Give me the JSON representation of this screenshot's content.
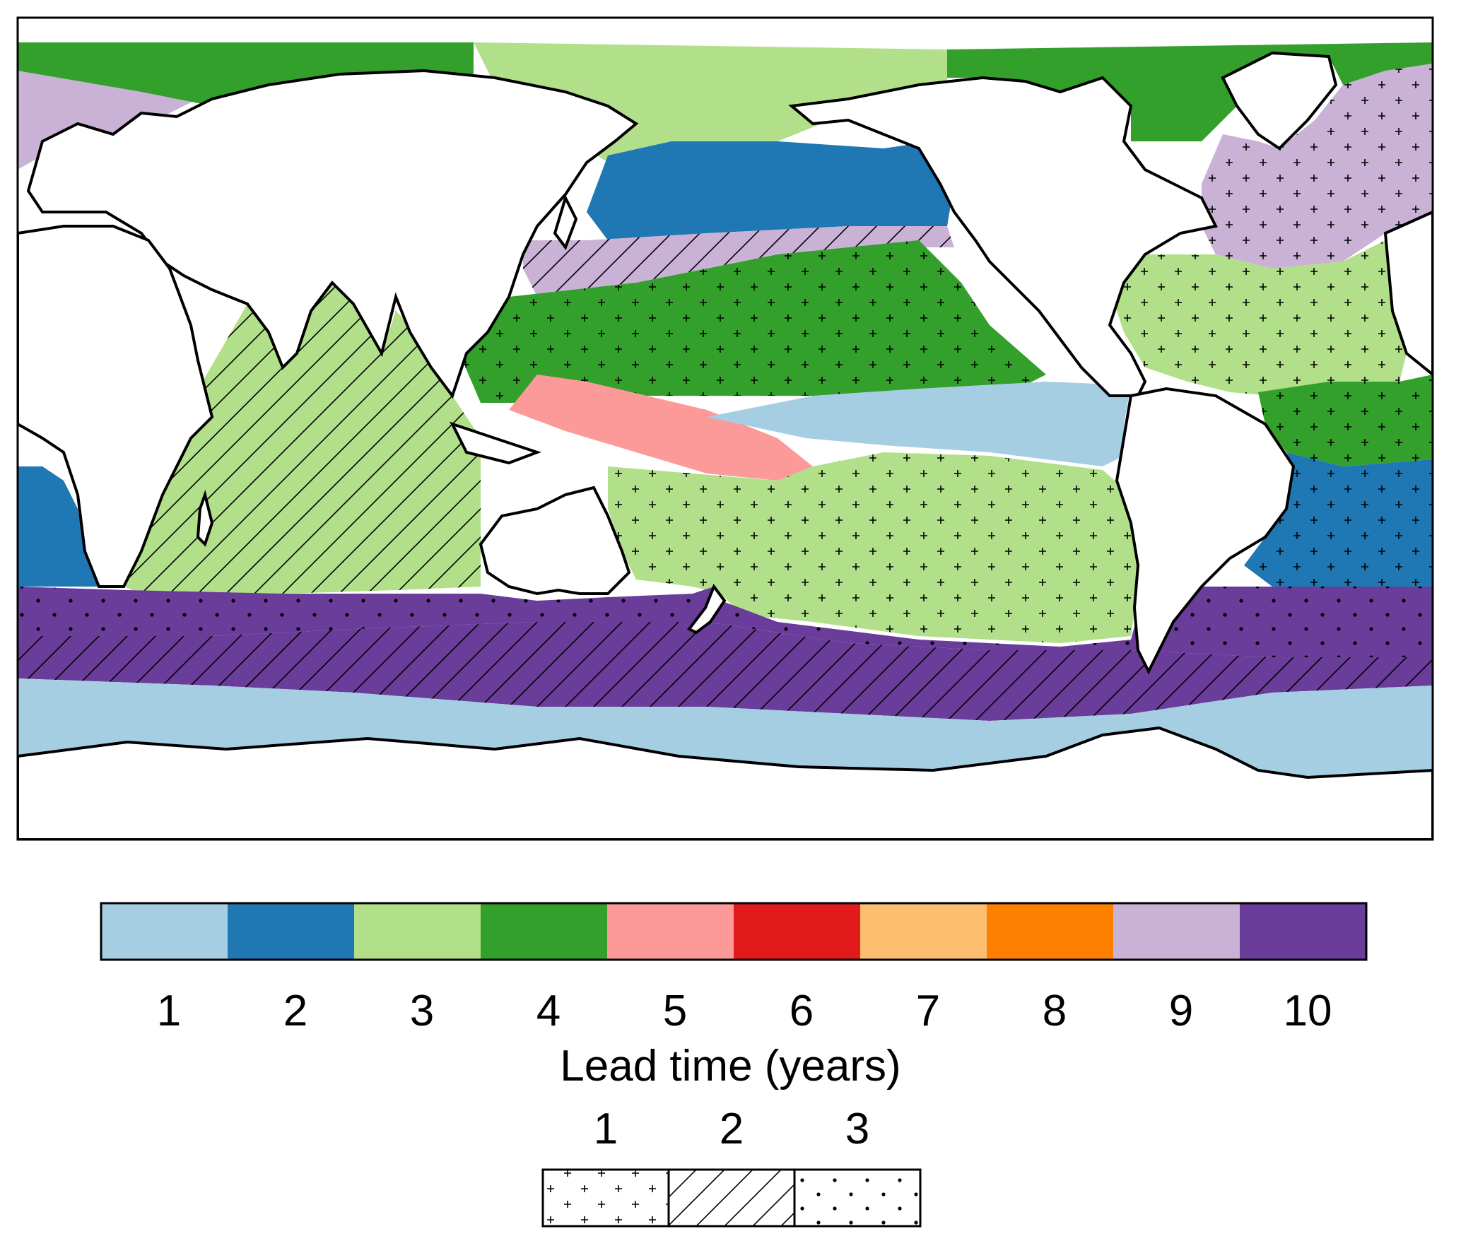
{
  "colorbar": {
    "title": "Lead time (years)",
    "ticks": [
      "1",
      "2",
      "3",
      "4",
      "5",
      "6",
      "7",
      "8",
      "9",
      "10"
    ],
    "colors": [
      "#a6cee3",
      "#1f78b4",
      "#b2df8a",
      "#33a02c",
      "#fb9a99",
      "#e31a1c",
      "#fdbf6f",
      "#ff7f00",
      "#cab2d6",
      "#6a3d9a"
    ]
  },
  "pattern_legend": {
    "ticks": [
      "1",
      "2",
      "3"
    ],
    "patterns": [
      "plus-pattern",
      "hatch-pattern",
      "dot-pattern"
    ]
  },
  "map": {
    "land_color": "#ffffff",
    "coast_color": "#000000",
    "regions": [
      {
        "name": "arctic-europe-purple",
        "lead_time": 9,
        "pattern": ""
      },
      {
        "name": "arctic-green",
        "lead_time": 4,
        "pattern": ""
      },
      {
        "name": "bering-light-green",
        "lead_time": 3,
        "pattern": ""
      },
      {
        "name": "north-pacific-blue",
        "lead_time": 2,
        "pattern": ""
      },
      {
        "name": "kuroshio-purple",
        "lead_time": 9,
        "pattern": "hatch-pattern"
      },
      {
        "name": "subtropical-north-pacific",
        "lead_time": 4,
        "pattern": "plus-pattern"
      },
      {
        "name": "western-pacific-pink",
        "lead_time": 5,
        "pattern": ""
      },
      {
        "name": "eastern-equatorial-pacific",
        "lead_time": 1,
        "pattern": ""
      },
      {
        "name": "south-pacific",
        "lead_time": 3,
        "pattern": "plus-pattern"
      },
      {
        "name": "indian-ocean",
        "lead_time": 3,
        "pattern": "hatch-pattern"
      },
      {
        "name": "southern-ocean-north-band",
        "lead_time": 10,
        "pattern": "dot-pattern"
      },
      {
        "name": "southern-ocean-south-band",
        "lead_time": 10,
        "pattern": "hatch-pattern"
      },
      {
        "name": "antarctic-margin",
        "lead_time": 1,
        "pattern": ""
      },
      {
        "name": "north-atlantic-purple",
        "lead_time": 9,
        "pattern": "plus-pattern"
      },
      {
        "name": "subtropical-north-atlantic",
        "lead_time": 3,
        "pattern": "plus-pattern"
      },
      {
        "name": "tropical-atlantic-green",
        "lead_time": 4,
        "pattern": "plus-pattern"
      },
      {
        "name": "south-atlantic-blue",
        "lead_time": 2,
        "pattern": "plus-pattern"
      },
      {
        "name": "southeast-atlantic-blue",
        "lead_time": 2,
        "pattern": ""
      },
      {
        "name": "canada-arctic-green",
        "lead_time": 4,
        "pattern": ""
      }
    ]
  }
}
